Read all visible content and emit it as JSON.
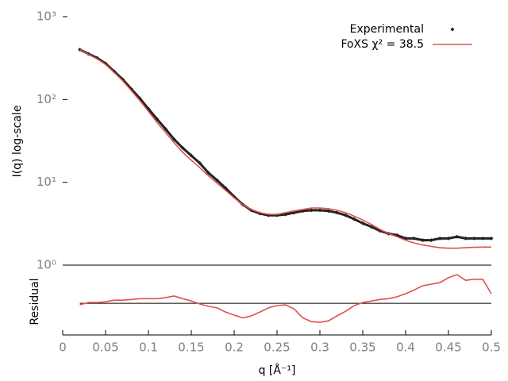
{
  "chart_data": [
    {
      "type": "line",
      "log_y": true,
      "legend": "top-right",
      "ylabel": "I(q) log-scale",
      "xlim": [
        0,
        0.5
      ],
      "ylim": [
        1,
        1000
      ],
      "yticks": [
        {
          "value": 1,
          "label": "10⁰"
        },
        {
          "value": 10,
          "label": "10¹"
        },
        {
          "value": 100,
          "label": "10²"
        },
        {
          "value": 1000,
          "label": "10³"
        }
      ],
      "x": [
        0.02,
        0.03,
        0.04,
        0.05,
        0.06,
        0.07,
        0.08,
        0.09,
        0.1,
        0.11,
        0.12,
        0.13,
        0.14,
        0.15,
        0.16,
        0.17,
        0.18,
        0.19,
        0.2,
        0.21,
        0.22,
        0.23,
        0.24,
        0.25,
        0.26,
        0.27,
        0.28,
        0.29,
        0.3,
        0.31,
        0.32,
        0.33,
        0.34,
        0.35,
        0.36,
        0.37,
        0.38,
        0.39,
        0.4,
        0.41,
        0.42,
        0.43,
        0.44,
        0.45,
        0.46,
        0.47,
        0.48,
        0.49,
        0.5
      ],
      "series": [
        {
          "name": "Experimental",
          "style": "points",
          "color": "#222222",
          "values": [
            400,
            355,
            318,
            272,
            218,
            175,
            134,
            103,
            77,
            58,
            44,
            33,
            26,
            21,
            17,
            13,
            10.6,
            8.5,
            6.7,
            5.4,
            4.6,
            4.2,
            4.0,
            4.0,
            4.1,
            4.3,
            4.5,
            4.6,
            4.6,
            4.5,
            4.3,
            4.0,
            3.6,
            3.2,
            2.9,
            2.6,
            2.4,
            2.3,
            2.1,
            2.1,
            2.0,
            2.0,
            2.1,
            2.1,
            2.2,
            2.1,
            2.1,
            2.1,
            2.1
          ]
        },
        {
          "name": "FoXS χ² = 38.5",
          "style": "line",
          "color": "#e0504d",
          "values": [
            400,
            350,
            310,
            265,
            212,
            168,
            128,
            97,
            72,
            53,
            40,
            30,
            23,
            18.5,
            15,
            12,
            9.8,
            8.0,
            6.5,
            5.4,
            4.7,
            4.3,
            4.1,
            4.1,
            4.3,
            4.5,
            4.7,
            4.9,
            4.9,
            4.8,
            4.6,
            4.3,
            3.9,
            3.5,
            3.1,
            2.7,
            2.4,
            2.2,
            2.0,
            1.85,
            1.75,
            1.68,
            1.62,
            1.6,
            1.6,
            1.62,
            1.64,
            1.65,
            1.65
          ]
        }
      ]
    },
    {
      "type": "line",
      "ylabel": "Residual",
      "xlabel": "q [Å⁻¹]",
      "xlim": [
        0,
        0.5
      ],
      "xticks": [
        0,
        0.05,
        0.1,
        0.15,
        0.2,
        0.25,
        0.3,
        0.35,
        0.4,
        0.45,
        0.5
      ],
      "ylim": [
        -0.83,
        1
      ],
      "reference_line": 0,
      "x": [
        0.02,
        0.03,
        0.04,
        0.05,
        0.06,
        0.07,
        0.08,
        0.09,
        0.1,
        0.11,
        0.12,
        0.13,
        0.14,
        0.15,
        0.16,
        0.17,
        0.18,
        0.19,
        0.2,
        0.21,
        0.22,
        0.23,
        0.24,
        0.25,
        0.26,
        0.27,
        0.28,
        0.29,
        0.3,
        0.31,
        0.32,
        0.33,
        0.34,
        0.35,
        0.36,
        0.37,
        0.38,
        0.39,
        0.4,
        0.41,
        0.42,
        0.43,
        0.44,
        0.45,
        0.46,
        0.47,
        0.48,
        0.49,
        0.5
      ],
      "series": [
        {
          "style": "line",
          "color": "#e0504d",
          "values": [
            -0.04,
            0.02,
            0.02,
            0.04,
            0.08,
            0.08,
            0.1,
            0.12,
            0.12,
            0.12,
            0.15,
            0.19,
            0.12,
            0.06,
            -0.02,
            -0.08,
            -0.12,
            -0.23,
            -0.31,
            -0.38,
            -0.33,
            -0.23,
            -0.12,
            -0.06,
            -0.04,
            -0.15,
            -0.38,
            -0.48,
            -0.5,
            -0.46,
            -0.33,
            -0.21,
            -0.06,
            0.02,
            0.06,
            0.1,
            0.12,
            0.17,
            0.25,
            0.35,
            0.46,
            0.5,
            0.54,
            0.67,
            0.75,
            0.6,
            0.63,
            0.63,
            0.25
          ]
        }
      ]
    }
  ]
}
